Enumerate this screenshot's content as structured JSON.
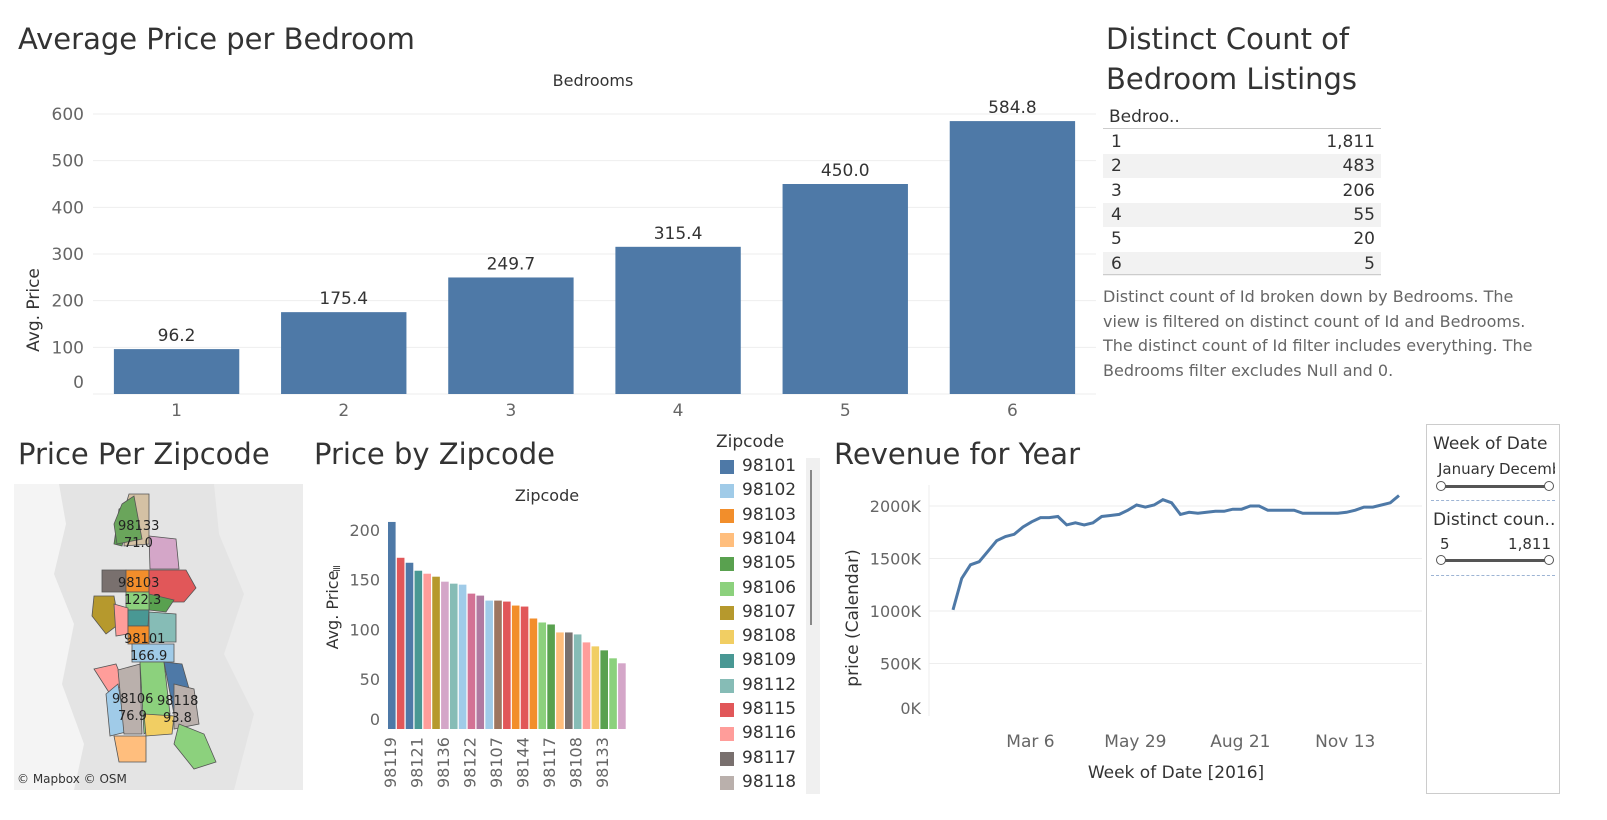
{
  "avg_price_panel": {
    "title": "Average Price per Bedroom",
    "header": "Bedrooms",
    "y_axis_label": "Avg. Price"
  },
  "distinct_panel": {
    "title_line1": "Distinct Count of",
    "title_line2": "Bedroom Listings",
    "column_header": "Bedroo..",
    "rows": [
      {
        "k": "1",
        "v": "1,811"
      },
      {
        "k": "2",
        "v": "483"
      },
      {
        "k": "3",
        "v": "206"
      },
      {
        "k": "4",
        "v": "55"
      },
      {
        "k": "5",
        "v": "20"
      },
      {
        "k": "6",
        "v": "5"
      }
    ],
    "caption": [
      "Distinct count of Id broken down by Bedrooms. The",
      "view is filtered on distinct count of Id and Bedrooms.",
      "The distinct count of Id filter includes everything. The",
      "Bedrooms filter excludes Null and 0."
    ]
  },
  "map_panel": {
    "title": "Price Per Zipcode",
    "attribution": "© Mapbox © OSM",
    "labels": [
      {
        "zip": "98133",
        "price": "71.0"
      },
      {
        "zip": "98103",
        "price": "122.3"
      },
      {
        "zip": "98101",
        "price": "166.9"
      },
      {
        "zip": "98106",
        "price": "76.9"
      },
      {
        "zip": "98118",
        "price": "93.8"
      }
    ]
  },
  "zip_panel": {
    "title": "Price by Zipcode",
    "header": "Zipcode",
    "y_axis_label": "Avg. Price"
  },
  "legend": {
    "title": "Zipcode",
    "items": [
      {
        "label": "98101",
        "color": "#4e79a7"
      },
      {
        "label": "98102",
        "color": "#a0cbe8"
      },
      {
        "label": "98103",
        "color": "#f28e2b"
      },
      {
        "label": "98104",
        "color": "#ffbe7d"
      },
      {
        "label": "98105",
        "color": "#59a14f"
      },
      {
        "label": "98106",
        "color": "#8cd17d"
      },
      {
        "label": "98107",
        "color": "#b6992d"
      },
      {
        "label": "98108",
        "color": "#f1ce63"
      },
      {
        "label": "98109",
        "color": "#499894"
      },
      {
        "label": "98112",
        "color": "#86bcb6"
      },
      {
        "label": "98115",
        "color": "#e15759"
      },
      {
        "label": "98116",
        "color": "#ff9d9a"
      },
      {
        "label": "98117",
        "color": "#79706e"
      },
      {
        "label": "98118",
        "color": "#bab0ac"
      }
    ]
  },
  "revenue_panel": {
    "title": "Revenue for Year",
    "y_axis_label": "price (Calendar)",
    "x_axis_label": "Week of Date [2016]"
  },
  "filters": {
    "week_title": "Week of Date",
    "week_min": "January",
    "week_max": "Decemb",
    "count_title": "Distinct coun..",
    "count_min": "5",
    "count_max": "1,811"
  },
  "chart_data": [
    {
      "type": "bar",
      "title": "Average Price per Bedroom",
      "xlabel": "Bedrooms",
      "ylabel": "Avg. Price",
      "categories": [
        "1",
        "2",
        "3",
        "4",
        "5",
        "6"
      ],
      "values": [
        96.2,
        175.4,
        249.7,
        315.4,
        450.0,
        584.8
      ],
      "data_labels": [
        "96.2",
        "175.4",
        "249.7",
        "315.4",
        "450.0",
        "584.8"
      ],
      "yticks": [
        "0",
        "100",
        "200",
        "300",
        "400",
        "500",
        "600"
      ],
      "ylim": [
        0,
        660
      ],
      "color": "#4e79a7",
      "grid": true
    },
    {
      "type": "bar",
      "title": "Price by Zipcode",
      "xlabel": "Zipcode",
      "ylabel": "Avg. Price",
      "values": [
        208,
        172,
        167,
        159,
        156,
        153,
        148,
        146,
        145,
        136,
        134,
        129,
        129,
        128,
        124,
        123,
        111,
        107,
        105,
        97,
        97,
        95,
        87,
        83,
        79,
        71,
        66
      ],
      "colors": [
        "#4e79a7",
        "#e15759",
        "#4e79a7",
        "#499894",
        "#ff9d9a",
        "#b6992d",
        "#d4a6c8",
        "#86bcb6",
        "#a0cbe8",
        "#d37295",
        "#b07aa1",
        "#a0cbe8",
        "#9d7660",
        "#e15759",
        "#f28e2b",
        "#e15759",
        "#f28e2b",
        "#8cd17d",
        "#59a14f",
        "#ffbe7d",
        "#79706e",
        "#86bcb6",
        "#ff9d9a",
        "#f1ce63",
        "#59a14f",
        "#8cd17d",
        "#d4a6c8"
      ],
      "tick_labels": [
        "98119",
        "98121",
        "98136",
        "98122",
        "98107",
        "98144",
        "98117",
        "98108",
        "98133"
      ],
      "yticks": [
        "0",
        "50",
        "100",
        "150",
        "200"
      ],
      "ylim": [
        0,
        220
      ],
      "legend_position": "right",
      "grid": false
    },
    {
      "type": "line",
      "title": "Revenue for Year",
      "xlabel": "Week of Date [2016]",
      "ylabel": "price (Calendar)",
      "x": [
        "2016-01-04",
        "2016-01-11",
        "2016-01-18",
        "2016-01-25",
        "2016-02-01",
        "2016-02-08",
        "2016-02-15",
        "2016-02-22",
        "2016-02-29",
        "2016-03-07",
        "2016-03-14",
        "2016-03-21",
        "2016-03-28",
        "2016-04-04",
        "2016-04-11",
        "2016-04-18",
        "2016-04-25",
        "2016-05-02",
        "2016-05-09",
        "2016-05-16",
        "2016-05-23",
        "2016-05-30",
        "2016-06-06",
        "2016-06-13",
        "2016-06-20",
        "2016-06-27",
        "2016-07-04",
        "2016-07-11",
        "2016-07-18",
        "2016-07-25",
        "2016-08-01",
        "2016-08-08",
        "2016-08-15",
        "2016-08-22",
        "2016-08-29",
        "2016-09-05",
        "2016-09-12",
        "2016-09-19",
        "2016-09-26",
        "2016-10-03",
        "2016-10-10",
        "2016-10-17",
        "2016-10-24",
        "2016-10-31",
        "2016-11-07",
        "2016-11-14",
        "2016-11-21",
        "2016-11-28",
        "2016-12-05",
        "2016-12-12",
        "2016-12-19",
        "2016-12-26"
      ],
      "y": [
        1010,
        1310,
        1440,
        1470,
        1570,
        1670,
        1710,
        1730,
        1800,
        1850,
        1890,
        1890,
        1900,
        1820,
        1840,
        1820,
        1840,
        1900,
        1910,
        1920,
        1960,
        2010,
        1990,
        2010,
        2060,
        2030,
        1920,
        1940,
        1930,
        1940,
        1950,
        1950,
        1970,
        1970,
        2000,
        2000,
        1960,
        1960,
        1960,
        1960,
        1930,
        1930,
        1930,
        1930,
        1930,
        1940,
        1960,
        1990,
        1990,
        2010,
        2030,
        2100
      ],
      "y_units": "K",
      "xticks": [
        "Mar 6",
        "May 29",
        "Aug 21",
        "Nov 13"
      ],
      "yticks": [
        "0K",
        "500K",
        "1000K",
        "1500K",
        "2000K"
      ],
      "ylim": [
        0,
        2200
      ],
      "color": "#4e79a7",
      "grid": true
    }
  ]
}
